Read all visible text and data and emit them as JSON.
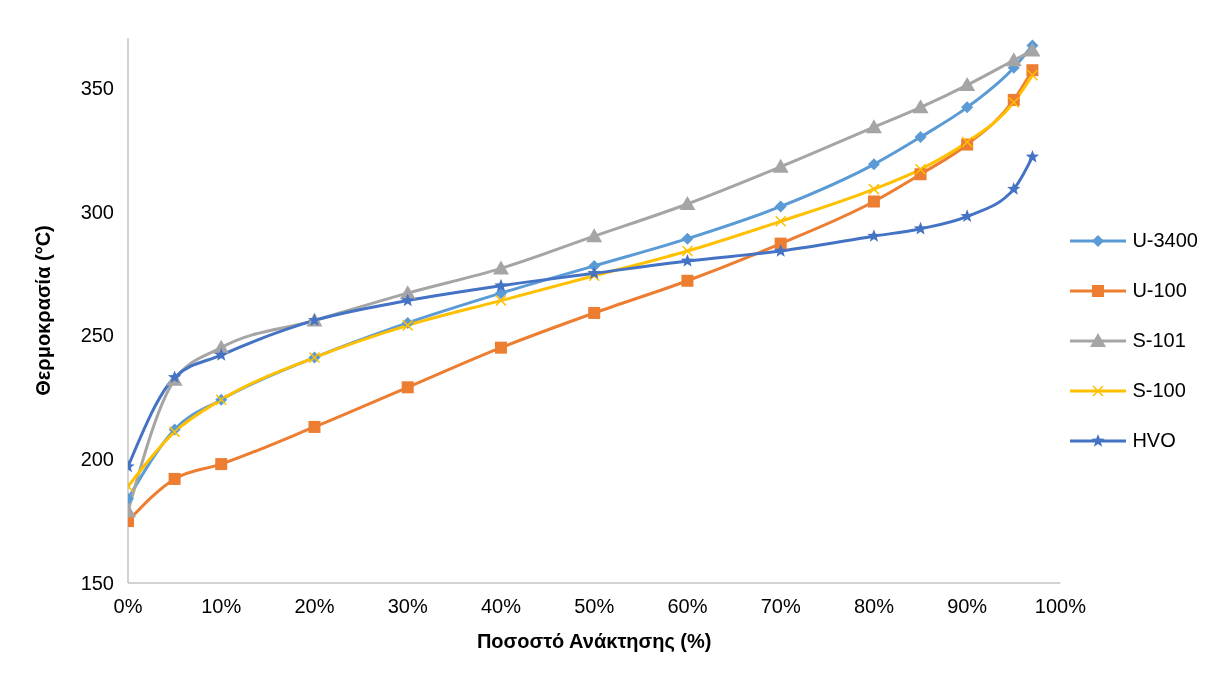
{
  "chart_data": {
    "type": "line",
    "xlabel": "Ποσοστό Ανάκτησης (%)",
    "ylabel": "Θερμοκρασία (°C)",
    "x": [
      0,
      5,
      10,
      20,
      30,
      40,
      50,
      60,
      70,
      80,
      85,
      90,
      95,
      97
    ],
    "xlim": [
      0,
      100
    ],
    "xticks": [
      {
        "value": 0,
        "label": "0%"
      },
      {
        "value": 10,
        "label": "10%"
      },
      {
        "value": 20,
        "label": "20%"
      },
      {
        "value": 30,
        "label": "30%"
      },
      {
        "value": 40,
        "label": "40%"
      },
      {
        "value": 50,
        "label": "50%"
      },
      {
        "value": 60,
        "label": "60%"
      },
      {
        "value": 70,
        "label": "70%"
      },
      {
        "value": 80,
        "label": "80%"
      },
      {
        "value": 90,
        "label": "90%"
      },
      {
        "value": 100,
        "label": "100%"
      }
    ],
    "ylim": [
      150,
      370
    ],
    "yticks": [
      150,
      200,
      250,
      300,
      350
    ],
    "grid": false,
    "legend": "right",
    "series": [
      {
        "name": "U-3400",
        "color": "#5b9bd5",
        "marker": "diamond",
        "values": [
          184,
          212,
          224,
          241,
          255,
          267,
          278,
          289,
          302,
          319,
          330,
          342,
          358,
          367
        ]
      },
      {
        "name": "U-100",
        "color": "#ed7d31",
        "marker": "square",
        "values": [
          175,
          192,
          198,
          213,
          229,
          245,
          259,
          272,
          287,
          304,
          315,
          327,
          345,
          357
        ]
      },
      {
        "name": "S-101",
        "color": "#a5a5a5",
        "marker": "triangle",
        "values": [
          179,
          232,
          245,
          256,
          267,
          277,
          290,
          303,
          318,
          334,
          342,
          351,
          361,
          365
        ]
      },
      {
        "name": "S-100",
        "color": "#ffc000",
        "marker": "cross",
        "values": [
          189,
          211,
          224,
          241,
          254,
          264,
          274,
          284,
          296,
          309,
          317,
          328,
          344,
          355
        ]
      },
      {
        "name": "HVO",
        "color": "#4472c4",
        "marker": "star",
        "values": [
          197,
          233,
          242,
          256,
          264,
          270,
          275,
          280,
          284,
          290,
          293,
          298,
          309,
          322
        ]
      }
    ]
  }
}
